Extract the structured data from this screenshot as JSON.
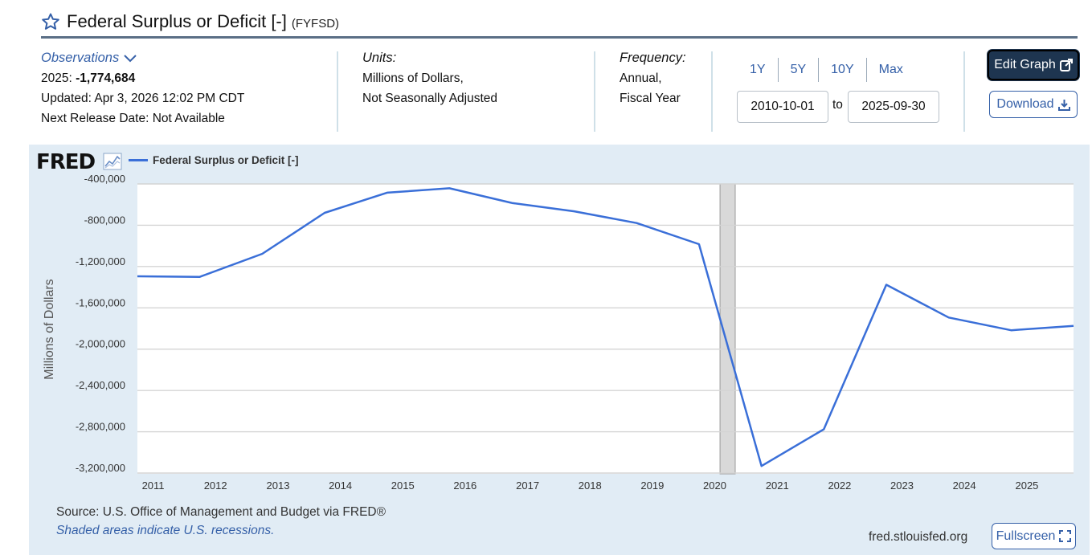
{
  "header": {
    "title": "Federal Surplus or Deficit [-]",
    "series_code": "(FYFSD)"
  },
  "observations": {
    "label": "Observations",
    "latest_label": "2025:",
    "latest_value": "-1,774,684",
    "updated": "Updated: Apr 3, 2026 12:02 PM CDT",
    "next_release": "Next Release Date: Not Available"
  },
  "units": {
    "label": "Units:",
    "line1": "Millions of Dollars,",
    "line2": "Not Seasonally Adjusted"
  },
  "frequency": {
    "label": "Frequency:",
    "line1": "Annual,",
    "line2": "Fiscal Year"
  },
  "range": {
    "buttons": [
      "1Y",
      "5Y",
      "10Y",
      "Max"
    ],
    "start_date": "2010-10-01",
    "to_label": "to",
    "end_date": "2025-09-30"
  },
  "actions": {
    "edit_label": "Edit Graph",
    "download_label": "Download",
    "fullscreen_label": "Fullscreen"
  },
  "chart_panel": {
    "logo": "FRED",
    "source": "Source: U.S. Office of Management and Budget via FRED®",
    "recession_note": "Shaded areas indicate U.S. recessions.",
    "url": "fred.stlouisfed.org"
  },
  "colors": {
    "series": "#3a6fd8",
    "panel_bg": "#e1ecf5",
    "accent": "#3560a8",
    "edit_btn": "#1e3550",
    "recession": "#d9d9d9"
  },
  "chart_data": {
    "type": "line",
    "ylabel": "Millions of Dollars",
    "ylim": [
      -3300000,
      -350000
    ],
    "yticks": [
      -400000,
      -800000,
      -1200000,
      -1600000,
      -2000000,
      -2400000,
      -2800000,
      -3200000
    ],
    "ytick_labels": [
      "-400,000",
      "-800,000",
      "-1,200,000",
      "-1,600,000",
      "-2,000,000",
      "-2,400,000",
      "-2,800,000",
      "-3,200,000"
    ],
    "xlim": [
      "2010-10-01",
      "2025-10-01"
    ],
    "xticks": [
      2011,
      2012,
      2013,
      2014,
      2015,
      2016,
      2017,
      2018,
      2019,
      2020,
      2021,
      2022,
      2023,
      2024,
      2025
    ],
    "grid": true,
    "legend": "top-left",
    "recessions": [
      {
        "start": "2020-02-01",
        "end": "2020-04-30"
      }
    ],
    "series": [
      {
        "name": "Federal Surplus or Deficit [-]",
        "x": [
          "2010-10-01",
          "2011-10-01",
          "2012-10-01",
          "2013-10-01",
          "2014-10-01",
          "2015-10-01",
          "2016-10-01",
          "2017-10-01",
          "2018-10-01",
          "2019-10-01",
          "2020-10-01",
          "2021-10-01",
          "2022-10-01",
          "2023-10-01",
          "2024-10-01",
          "2025-10-01"
        ],
        "values": [
          -1294373,
          -1299599,
          -1076573,
          -679775,
          -484602,
          -441960,
          -584651,
          -665446,
          -779137,
          -983592,
          -3131917,
          -2775306,
          -1375905,
          -1693736,
          -1817360,
          -1774684
        ]
      }
    ]
  }
}
